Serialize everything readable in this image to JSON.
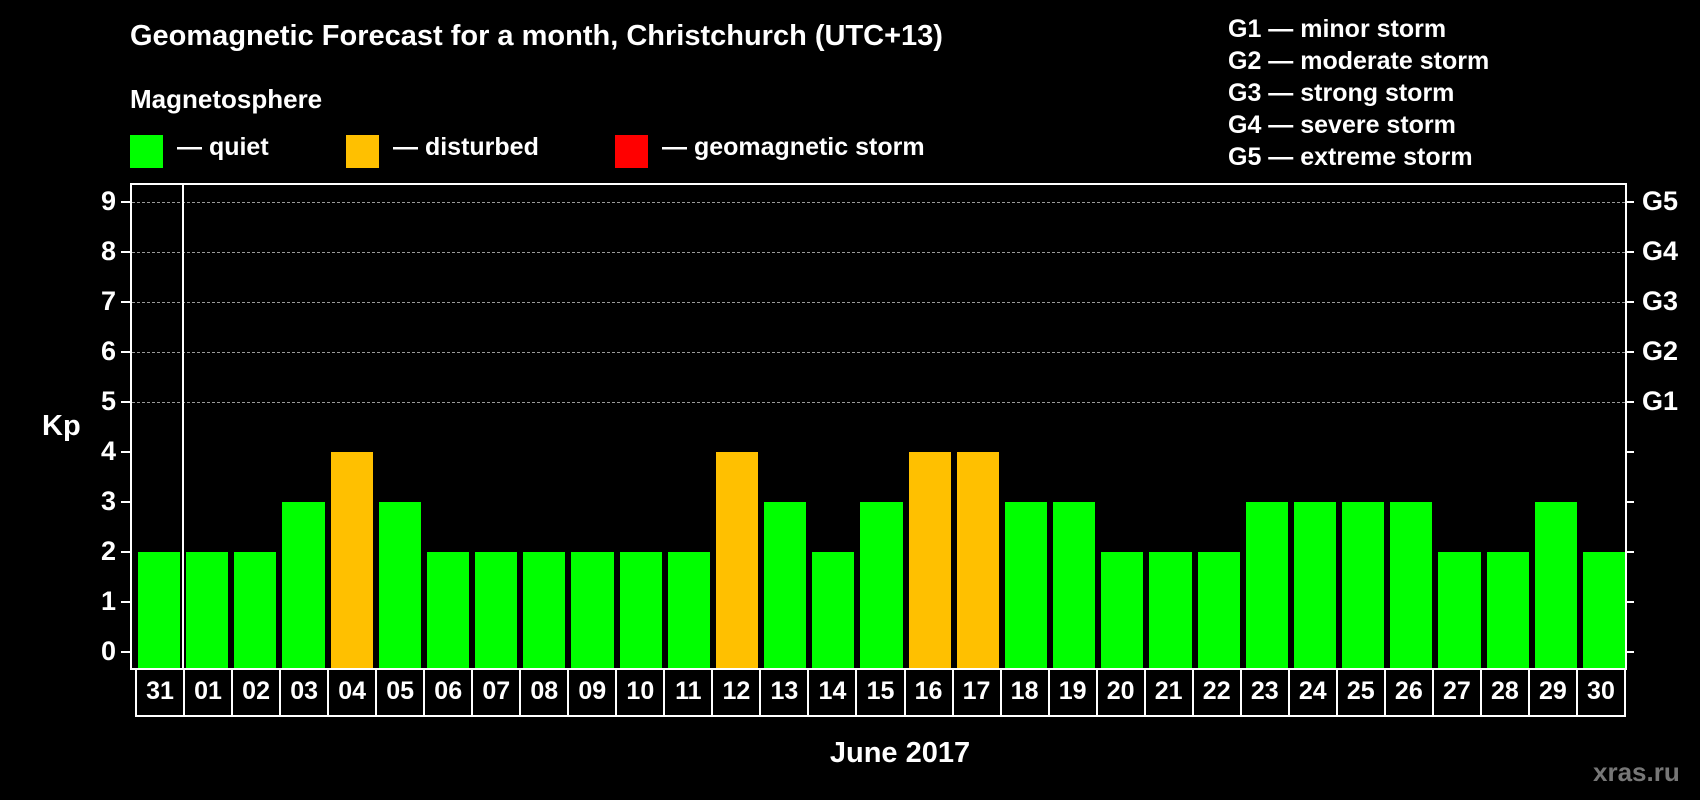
{
  "header": {
    "title": "Geomagnetic Forecast for a month, Christchurch (UTC+13)",
    "subtitle": "Magnetosphere"
  },
  "legend": {
    "status": [
      {
        "label": "— quiet",
        "color": "#00ff00"
      },
      {
        "label": "— disturbed",
        "color": "#ffc000"
      },
      {
        "label": "— geomagnetic storm",
        "color": "#ff0000"
      }
    ],
    "storm_scale": [
      "G1 — minor storm",
      "G2 — moderate storm",
      "G3 — strong storm",
      "G4 — severe storm",
      "G5 — extreme storm"
    ]
  },
  "axes": {
    "ylabel": "Kp",
    "xlabel": "June 2017",
    "yticks": [
      "0",
      "1",
      "2",
      "3",
      "4",
      "5",
      "6",
      "7",
      "8",
      "9"
    ],
    "right_labels": [
      {
        "kp": 5,
        "label": "G1"
      },
      {
        "kp": 6,
        "label": "G2"
      },
      {
        "kp": 7,
        "label": "G3"
      },
      {
        "kp": 8,
        "label": "G4"
      },
      {
        "kp": 9,
        "label": "G5"
      }
    ]
  },
  "watermark": "xras.ru",
  "chart_data": {
    "type": "bar",
    "title": "Geomagnetic Forecast for a month, Christchurch (UTC+13)",
    "xlabel": "June 2017",
    "ylabel": "Kp",
    "ylim": [
      0,
      9
    ],
    "grid": "dashed horizontal at Kp 5-9",
    "categories": [
      "31",
      "01",
      "02",
      "03",
      "04",
      "05",
      "06",
      "07",
      "08",
      "09",
      "10",
      "11",
      "12",
      "13",
      "14",
      "15",
      "16",
      "17",
      "18",
      "19",
      "20",
      "21",
      "22",
      "23",
      "24",
      "25",
      "26",
      "27",
      "28",
      "29",
      "30"
    ],
    "values": [
      2,
      2,
      2,
      3,
      4,
      3,
      2,
      2,
      2,
      2,
      2,
      2,
      4,
      3,
      2,
      3,
      4,
      4,
      3,
      3,
      2,
      2,
      2,
      3,
      3,
      3,
      3,
      2,
      2,
      3,
      2
    ],
    "status": [
      "quiet",
      "quiet",
      "quiet",
      "quiet",
      "disturbed",
      "quiet",
      "quiet",
      "quiet",
      "quiet",
      "quiet",
      "quiet",
      "quiet",
      "disturbed",
      "quiet",
      "quiet",
      "quiet",
      "disturbed",
      "disturbed",
      "quiet",
      "quiet",
      "quiet",
      "quiet",
      "quiet",
      "quiet",
      "quiet",
      "quiet",
      "quiet",
      "quiet",
      "quiet",
      "quiet",
      "quiet"
    ],
    "colors": {
      "quiet": "#00ff00",
      "disturbed": "#ffc000",
      "storm": "#ff0000"
    },
    "legend": [
      "quiet",
      "disturbed",
      "geomagnetic storm"
    ]
  }
}
